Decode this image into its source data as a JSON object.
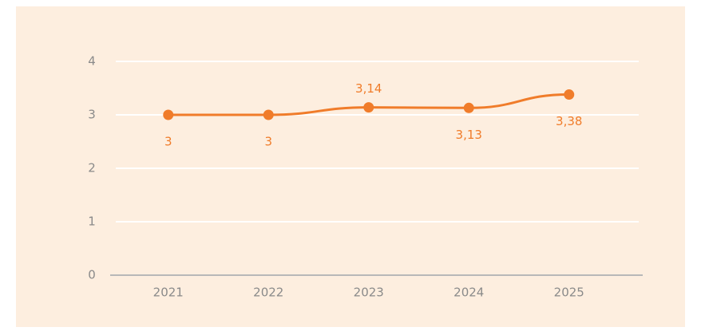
{
  "chart_data": {
    "type": "line",
    "categories": [
      "2021",
      "2022",
      "2023",
      "2024",
      "2025"
    ],
    "series": [
      {
        "color": "#f07c2a",
        "values": [
          3,
          3,
          3.14,
          3.13,
          3.38
        ],
        "value_labels": [
          "3",
          "3",
          "3,14",
          "3,13",
          "3,38"
        ]
      }
    ],
    "ylim": [
      0,
      4
    ],
    "yticks": [
      0,
      1,
      2,
      3,
      4
    ],
    "grid": true
  }
}
